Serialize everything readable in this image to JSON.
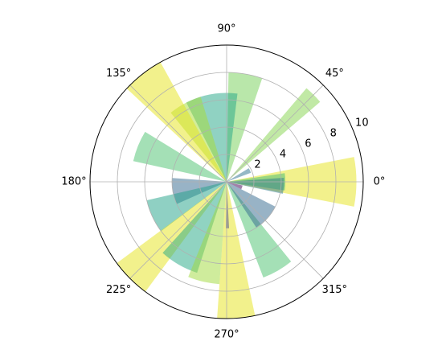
{
  "chart_data": {
    "type": "polar-bar",
    "title": "",
    "theta_unit": "degrees",
    "theta_tick_labels": [
      "0°",
      "45°",
      "90°",
      "135°",
      "180°",
      "225°",
      "270°",
      "315°"
    ],
    "theta_ticks": [
      0,
      45,
      90,
      135,
      180,
      225,
      270,
      315
    ],
    "r_tick_labels": [
      "2",
      "4",
      "6",
      "8",
      "10"
    ],
    "r_ticks": [
      2,
      4,
      6,
      8,
      10
    ],
    "rlim": [
      0,
      10
    ],
    "r_label_angle": 22.5,
    "grid": true,
    "bar_alpha": 0.5,
    "colormap": "viridis",
    "bars": [
      {
        "theta": 0,
        "width": 22,
        "r": 9.5,
        "color": "#e5e419"
      },
      {
        "theta": 0,
        "width": 17,
        "r": 4.3,
        "color": "#3fbc73"
      },
      {
        "theta": 356,
        "width": 16,
        "r": 4.2,
        "color": "#2a788e"
      },
      {
        "theta": 26,
        "width": 11,
        "r": 1.9,
        "color": "#2c728e"
      },
      {
        "theta": 45,
        "width": 9,
        "r": 9.0,
        "color": "#84d44b"
      },
      {
        "theta": 80,
        "width": 18,
        "r": 8.0,
        "color": "#73d056"
      },
      {
        "theta": 100,
        "width": 34,
        "r": 6.5,
        "color": "#21a685"
      },
      {
        "theta": 118,
        "width": 22,
        "r": 6.5,
        "color": "#a8db34"
      },
      {
        "theta": 128,
        "width": 18,
        "r": 10.0,
        "color": "#e5e419"
      },
      {
        "theta": 158,
        "width": 19,
        "r": 7.0,
        "color": "#4ac16d"
      },
      {
        "theta": 190,
        "width": 28,
        "r": 4.0,
        "color": "#31688e"
      },
      {
        "theta": 205,
        "width": 24,
        "r": 6.0,
        "color": "#1fa187"
      },
      {
        "theta": 225,
        "width": 17,
        "r": 10.0,
        "color": "#e5e419"
      },
      {
        "theta": 240,
        "width": 24,
        "r": 7.0,
        "color": "#22a884"
      },
      {
        "theta": 257,
        "width": 18,
        "r": 7.5,
        "color": "#a0da39"
      },
      {
        "theta": 274,
        "width": 16,
        "r": 10.0,
        "color": "#e5e419"
      },
      {
        "theta": 271,
        "width": 4,
        "r": 3.4,
        "color": "#414487"
      },
      {
        "theta": 300,
        "width": 18,
        "r": 7.5,
        "color": "#4ac16d"
      },
      {
        "theta": 318,
        "width": 30,
        "r": 4.0,
        "color": "#31688e"
      },
      {
        "theta": 340,
        "width": 14,
        "r": 1.2,
        "color": "#440154"
      }
    ]
  }
}
